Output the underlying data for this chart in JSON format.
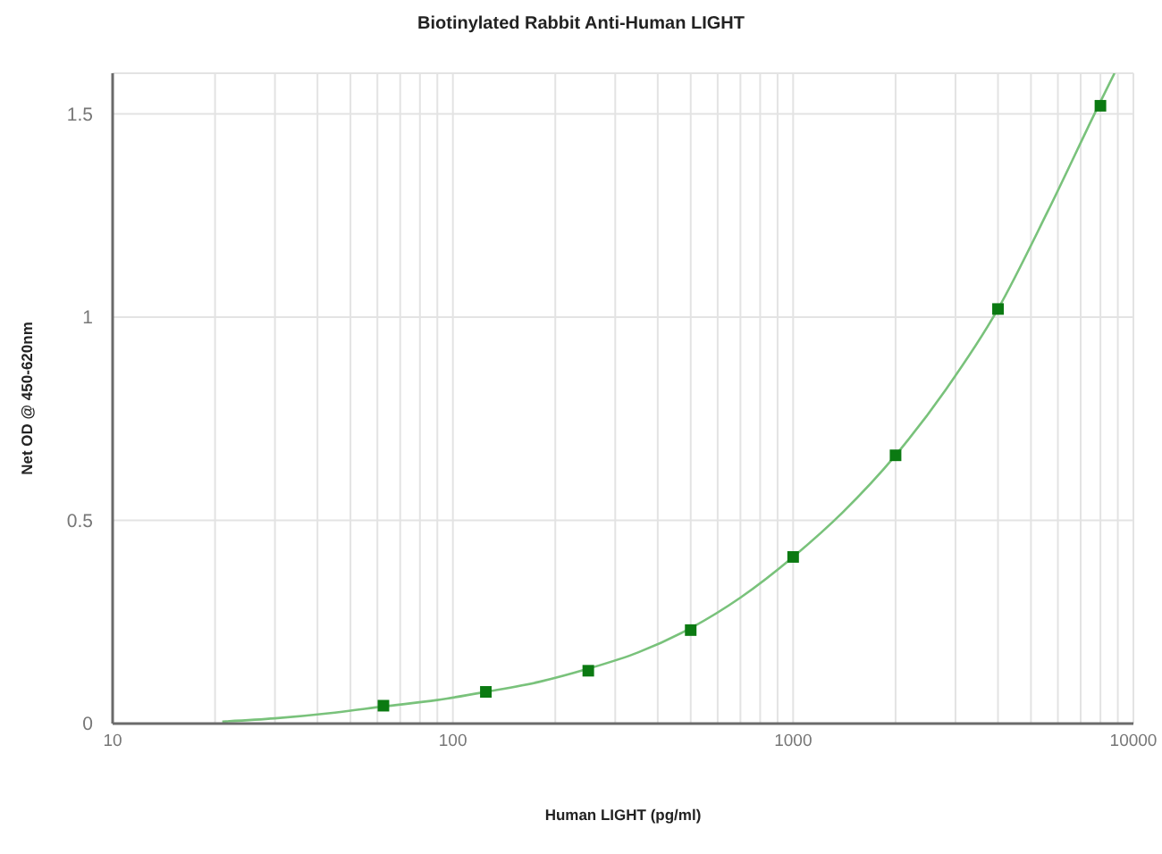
{
  "chart_data": {
    "type": "scatter",
    "title": "Biotinylated Rabbit Anti-Human LIGHT",
    "xlabel": "Human LIGHT (pg/ml)",
    "ylabel": "Net OD @ 450-620nm",
    "log": "x",
    "grid": true,
    "xlim": [
      10,
      10000
    ],
    "xticks": [
      10,
      {
        "value": 20,
        "label": null
      },
      {
        "value": 30,
        "label": null
      },
      {
        "value": 40,
        "label": null
      },
      {
        "value": 50,
        "label": null
      },
      {
        "value": 60,
        "label": null
      },
      {
        "value": 70,
        "label": null
      },
      {
        "value": 80,
        "label": null
      },
      {
        "value": 90,
        "label": null
      },
      100,
      {
        "value": 200,
        "label": null
      },
      {
        "value": 300,
        "label": null
      },
      {
        "value": 400,
        "label": null
      },
      {
        "value": 500,
        "label": null
      },
      {
        "value": 600,
        "label": null
      },
      {
        "value": 700,
        "label": null
      },
      {
        "value": 800,
        "label": null
      },
      {
        "value": 900,
        "label": null
      },
      1000,
      {
        "value": 2000,
        "label": null
      },
      {
        "value": 3000,
        "label": null
      },
      {
        "value": 4000,
        "label": null
      },
      {
        "value": 5000,
        "label": null
      },
      {
        "value": 6000,
        "label": null
      },
      {
        "value": 7000,
        "label": null
      },
      {
        "value": 8000,
        "label": null
      },
      {
        "value": 9000,
        "label": null
      },
      10000
    ],
    "ylim": [
      0,
      1.6
    ],
    "yticks": [
      0,
      0.5,
      1,
      1.5
    ],
    "series": [
      {
        "color": "#0b7a12",
        "marker": "square",
        "x": [
          62.5,
          125,
          250,
          500,
          1000,
          2000,
          4000,
          8000
        ],
        "values": [
          0.044,
          0.078,
          0.13,
          0.23,
          0.41,
          0.66,
          1.02,
          1.52
        ]
      },
      {
        "type": "line",
        "color": "#79c27b",
        "marker": "none",
        "line_style": "solid",
        "x": [
          21,
          30,
          45,
          62.5,
          90,
          125,
          180,
          250,
          350,
          500,
          700,
          1000,
          1400,
          2000,
          2800,
          4000,
          5600,
          8000,
          8800
        ],
        "values": [
          0.005,
          0.013,
          0.027,
          0.042,
          0.058,
          0.078,
          0.103,
          0.135,
          0.175,
          0.235,
          0.31,
          0.41,
          0.52,
          0.66,
          0.82,
          1.02,
          1.26,
          1.53,
          1.6
        ]
      }
    ]
  }
}
